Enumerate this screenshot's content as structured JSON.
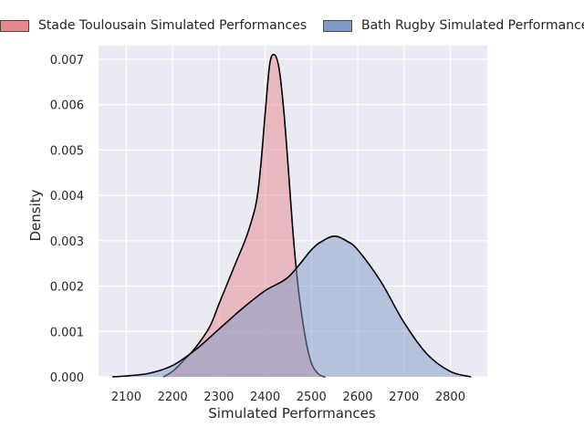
{
  "colors": {
    "plot_background": "#EAEAF2",
    "grid": "#FFFFFF",
    "curve_outline": "#000000"
  },
  "chart_data": {
    "type": "area",
    "title": "",
    "xlabel": "Simulated Performances",
    "ylabel": "Density",
    "xlim": [
      2040,
      2880
    ],
    "ylim": [
      0,
      0.0073
    ],
    "xticks": [
      2100,
      2200,
      2300,
      2400,
      2500,
      2600,
      2700,
      2800
    ],
    "yticks": [
      0.0,
      0.001,
      0.002,
      0.003,
      0.004,
      0.005,
      0.006,
      0.007
    ],
    "ytick_labels": [
      "0.000",
      "0.001",
      "0.002",
      "0.003",
      "0.004",
      "0.005",
      "0.006",
      "0.007"
    ],
    "grid": true,
    "legend": {
      "placement": "top",
      "ncol": 2
    },
    "series": [
      {
        "name": "Stade Toulousain Simulated Performances",
        "fill": "#E8888E",
        "fill_opacity": 0.5,
        "x": [
          2180,
          2200,
          2220,
          2250,
          2280,
          2300,
          2320,
          2340,
          2360,
          2380,
          2390,
          2400,
          2410,
          2420,
          2430,
          2440,
          2450,
          2460,
          2470,
          2480,
          2490,
          2500,
          2510,
          2520,
          2530
        ],
        "y": [
          0.0,
          0.00012,
          0.00032,
          0.00065,
          0.0011,
          0.0016,
          0.0021,
          0.0026,
          0.0031,
          0.0038,
          0.0046,
          0.0058,
          0.0069,
          0.0071,
          0.0068,
          0.0059,
          0.0046,
          0.0032,
          0.0021,
          0.0013,
          0.0007,
          0.0003,
          0.00012,
          3e-05,
          0.0
        ]
      },
      {
        "name": "Bath Rugby Simulated Performances",
        "fill": "#7F9AC5",
        "fill_opacity": 0.5,
        "x": [
          2070,
          2100,
          2150,
          2200,
          2250,
          2300,
          2350,
          2400,
          2450,
          2500,
          2525,
          2550,
          2575,
          2600,
          2650,
          2700,
          2750,
          2800,
          2845
        ],
        "y": [
          0.0,
          2e-05,
          8e-05,
          0.00025,
          0.0006,
          0.00105,
          0.0015,
          0.0019,
          0.0022,
          0.0028,
          0.003,
          0.0031,
          0.003,
          0.0028,
          0.0021,
          0.0012,
          0.0005,
          0.00012,
          0.0
        ]
      }
    ]
  }
}
